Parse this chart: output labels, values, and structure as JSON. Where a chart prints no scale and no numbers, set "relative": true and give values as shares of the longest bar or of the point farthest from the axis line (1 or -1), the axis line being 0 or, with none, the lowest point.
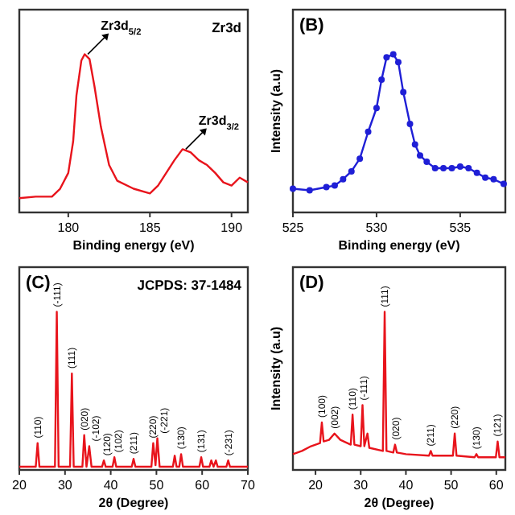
{
  "chart_data": [
    {
      "type": "line",
      "relative": true,
      "xlabel": "Binding energy (eV)",
      "xlim": [
        177,
        191
      ],
      "xticks": [
        180,
        185,
        190
      ],
      "x": [
        177,
        178,
        179,
        179.5,
        180,
        180.3,
        180.5,
        180.8,
        181,
        181.3,
        181.6,
        182,
        182.5,
        183,
        184,
        185,
        185.5,
        186,
        186.5,
        187,
        187.5,
        188,
        188.5,
        189,
        189.5,
        190,
        190.5,
        191
      ],
      "series": [
        {
          "color": "#e8141c",
          "values": [
            0.09,
            0.1,
            0.1,
            0.15,
            0.25,
            0.45,
            0.74,
            0.96,
            1,
            0.97,
            0.8,
            0.54,
            0.3,
            0.2,
            0.15,
            0.12,
            0.17,
            0.25,
            0.33,
            0.4,
            0.38,
            0.33,
            0.3,
            0.25,
            0.19,
            0.17,
            0.22,
            0.19
          ]
        }
      ],
      "annotations": [
        "Zr3d",
        {
          "text": "Zr3d$_{5/2}$",
          "x": 181,
          "y": 1
        },
        {
          "text": "Zr3d$_{3/2}$",
          "x": 187,
          "y": 0.4
        }
      ]
    },
    {
      "type": "line",
      "relative": true,
      "title": "(B)",
      "xlabel": "Binding energy (eV)",
      "ylabel": "Intensity (a.u)",
      "xlim": [
        525,
        537.7
      ],
      "xticks": [
        525,
        530,
        535
      ],
      "marker": "circle",
      "x": [
        525,
        526,
        527,
        527.5,
        528,
        528.5,
        529,
        529.5,
        530,
        530.3,
        530.6,
        531,
        531.3,
        531.6,
        532,
        532.3,
        532.6,
        533,
        533.5,
        534,
        534.5,
        535,
        535.5,
        536,
        536.5,
        537,
        537.6
      ],
      "series": [
        {
          "color": "#1f1fd6",
          "values": [
            0.15,
            0.14,
            0.16,
            0.17,
            0.21,
            0.26,
            0.34,
            0.51,
            0.66,
            0.84,
            0.98,
            1,
            0.95,
            0.76,
            0.56,
            0.43,
            0.36,
            0.32,
            0.28,
            0.28,
            0.28,
            0.29,
            0.28,
            0.25,
            0.22,
            0.21,
            0.18
          ]
        }
      ]
    },
    {
      "type": "line",
      "relative": true,
      "title": "(C)",
      "xlabel": "2θ (Degree)",
      "xlim": [
        20,
        70
      ],
      "xticks": [
        20,
        30,
        40,
        50,
        60,
        70
      ],
      "x": [
        20,
        23.6,
        24,
        24.4,
        27.8,
        28.2,
        28.6,
        31.1,
        31.5,
        31.9,
        33.8,
        34.2,
        34.7,
        35.3,
        35.8,
        38.1,
        38.5,
        38.9,
        40.4,
        40.8,
        41.2,
        44.6,
        45,
        45.4,
        48.9,
        49.3,
        49.8,
        50.2,
        50.7,
        53.6,
        54,
        54.4,
        55,
        55.4,
        55.8,
        59.4,
        59.8,
        60.2,
        61.6,
        62,
        62.5,
        63,
        63.4,
        65.3,
        65.7,
        66.1,
        70
      ],
      "series": [
        {
          "color": "#e8141c",
          "values": [
            0.02,
            0.02,
            0.17,
            0.02,
            0.02,
            1,
            0.02,
            0.02,
            0.61,
            0.02,
            0.02,
            0.22,
            0.02,
            0.15,
            0.02,
            0.02,
            0.06,
            0.02,
            0.02,
            0.08,
            0.02,
            0.02,
            0.07,
            0.02,
            0.02,
            0.17,
            0.03,
            0.2,
            0.02,
            0.02,
            0.09,
            0.02,
            0.02,
            0.1,
            0.02,
            0.02,
            0.08,
            0.02,
            0.02,
            0.06,
            0.02,
            0.06,
            0.02,
            0.02,
            0.06,
            0.02,
            0.02
          ]
        }
      ],
      "annotations": [
        "JCPDS: 37-1484",
        {
          "text": "(110)",
          "x": 24,
          "y": 0.17
        },
        {
          "text": "(-111)",
          "x": 28.2,
          "y": 1
        },
        {
          "text": "(111)",
          "x": 31.5,
          "y": 0.61
        },
        {
          "text": "(020)",
          "x": 34.2,
          "y": 0.22
        },
        {
          "text": "(-102)",
          "x": 35.3,
          "y": 0.15
        },
        {
          "text": "(120)",
          "x": 38.5,
          "y": 0.06
        },
        {
          "text": "(102)",
          "x": 40.8,
          "y": 0.08
        },
        {
          "text": "(211)",
          "x": 45,
          "y": 0.07
        },
        {
          "text": "(220)",
          "x": 49.3,
          "y": 0.17
        },
        {
          "text": "(-221)",
          "x": 50.2,
          "y": 0.2
        },
        {
          "text": "(130)",
          "x": 55.4,
          "y": 0.1
        },
        {
          "text": "(131)",
          "x": 59.8,
          "y": 0.08
        },
        {
          "text": "(-231)",
          "x": 65.7,
          "y": 0.06
        }
      ]
    },
    {
      "type": "line",
      "relative": true,
      "title": "(D)",
      "xlabel": "2θ (Degree)",
      "ylabel": "Intensity (a.u)",
      "xlim": [
        15,
        62
      ],
      "xticks": [
        20,
        30,
        40,
        50,
        60
      ],
      "x": [
        15,
        17,
        19,
        21,
        21.4,
        21.8,
        23,
        24.2,
        25.5,
        27.8,
        28.2,
        28.6,
        30,
        30.4,
        30.8,
        31.5,
        31.9,
        34.9,
        35.3,
        35.7,
        37.2,
        37.6,
        38,
        40,
        45.1,
        45.5,
        45.9,
        50.4,
        50.8,
        51.2,
        55.2,
        55.6,
        56,
        59.9,
        60.3,
        60.7,
        62
      ],
      "series": [
        {
          "color": "#e8141c",
          "values": [
            0.1,
            0.12,
            0.15,
            0.17,
            0.3,
            0.18,
            0.19,
            0.23,
            0.19,
            0.16,
            0.35,
            0.16,
            0.15,
            0.41,
            0.15,
            0.23,
            0.14,
            0.12,
            1,
            0.12,
            0.11,
            0.16,
            0.11,
            0.1,
            0.09,
            0.12,
            0.09,
            0.09,
            0.23,
            0.09,
            0.08,
            0.1,
            0.08,
            0.08,
            0.18,
            0.08,
            0.08
          ]
        }
      ],
      "annotations": [
        {
          "text": "(100)",
          "x": 21.4,
          "y": 0.3
        },
        {
          "text": "(002)",
          "x": 24.2,
          "y": 0.23
        },
        {
          "text": "(110)",
          "x": 28.2,
          "y": 0.35
        },
        {
          "text": "(-111)",
          "x": 30.4,
          "y": 0.41
        },
        {
          "text": "(111)",
          "x": 35.3,
          "y": 1
        },
        {
          "text": "(020)",
          "x": 37.6,
          "y": 0.16
        },
        {
          "text": "(211)",
          "x": 45.5,
          "y": 0.12
        },
        {
          "text": "(220)",
          "x": 50.8,
          "y": 0.23
        },
        {
          "text": "(130)",
          "x": 55.6,
          "y": 0.1
        },
        {
          "text": "(121)",
          "x": 60.3,
          "y": 0.18
        }
      ]
    }
  ]
}
